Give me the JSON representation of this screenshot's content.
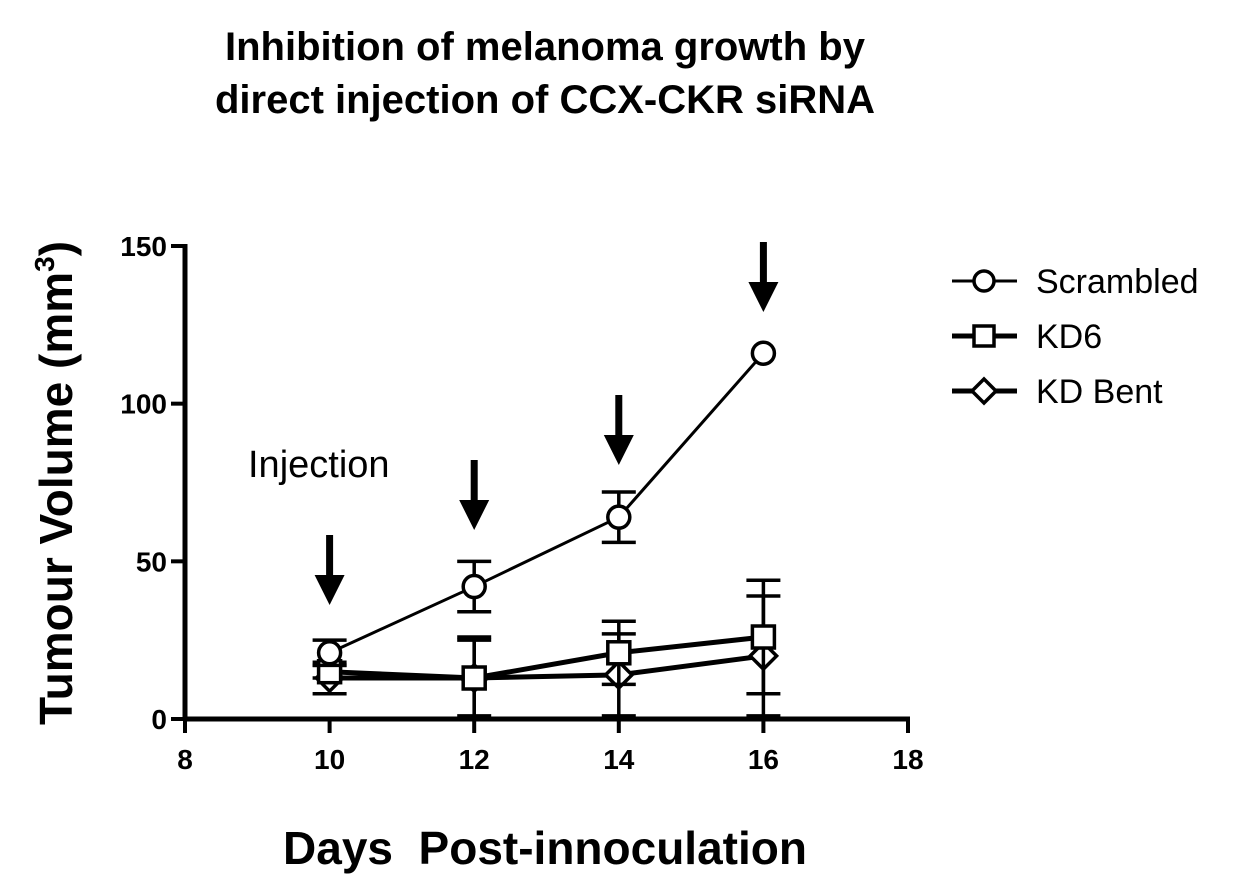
{
  "chart_data": {
    "type": "line",
    "title": "Inhibition of melanoma growth by direct injection of CCX-CKR siRNA",
    "title_lines": [
      "Inhibition of melanoma growth by",
      "direct injection of CCX-CKR siRNA"
    ],
    "xlabel": "Days  Post-innoculation",
    "ylabel": "Tumour Volume (mm",
    "ylabel_superscript": "3",
    "ylabel_close": ")",
    "xlim": [
      8,
      18
    ],
    "ylim": [
      0,
      150
    ],
    "x_ticks": [
      8,
      10,
      12,
      14,
      16,
      18
    ],
    "y_ticks": [
      0,
      50,
      100,
      150
    ],
    "grid": false,
    "legend_position": "right",
    "series": [
      {
        "name": "Scrambled",
        "marker": "circle",
        "x": [
          10,
          12,
          14,
          16
        ],
        "y": [
          21,
          42,
          64,
          116
        ],
        "error": [
          4,
          8,
          8,
          0
        ]
      },
      {
        "name": "KD6",
        "marker": "square",
        "x": [
          10,
          12,
          14,
          16
        ],
        "y": [
          15,
          13,
          21,
          26
        ],
        "error": [
          2,
          12,
          10,
          18
        ]
      },
      {
        "name": "KD Bent",
        "marker": "diamond",
        "x": [
          10,
          12,
          14,
          16
        ],
        "y": [
          13,
          13,
          14,
          20
        ],
        "error": [
          5,
          13,
          13,
          19
        ]
      }
    ],
    "annotations": {
      "label": "Injection",
      "arrow_days": [
        10,
        12,
        14,
        16
      ]
    }
  }
}
